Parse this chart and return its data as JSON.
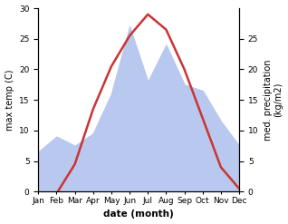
{
  "months": [
    "Jan",
    "Feb",
    "Mar",
    "Apr",
    "May",
    "Jun",
    "Jul",
    "Aug",
    "Sep",
    "Oct",
    "Nov",
    "Dec"
  ],
  "temp": [
    -0.3,
    -0.3,
    4.5,
    13.5,
    20.5,
    25.5,
    29.0,
    26.5,
    20.0,
    12.0,
    4.0,
    0.5
  ],
  "precip": [
    6.5,
    9.0,
    7.5,
    9.5,
    16.0,
    27.0,
    18.0,
    24.0,
    17.5,
    16.5,
    11.5,
    7.5
  ],
  "temp_color": "#cc3333",
  "precip_color": "#b8c8ee",
  "ylim_left": [
    0,
    30
  ],
  "ylim_right": [
    0,
    30
  ],
  "right_ticks": [
    0,
    5,
    10,
    15,
    20,
    25
  ],
  "left_ticks": [
    0,
    5,
    10,
    15,
    20,
    25,
    30
  ],
  "ylabel_left": "max temp (C)",
  "ylabel_right": "med. precipitation\n(kg/m2)",
  "xlabel": "date (month)",
  "tick_fontsize": 6.5,
  "label_fontsize": 7,
  "xlabel_fontsize": 7.5,
  "linewidth": 1.8,
  "precip_alpha": 1.0
}
